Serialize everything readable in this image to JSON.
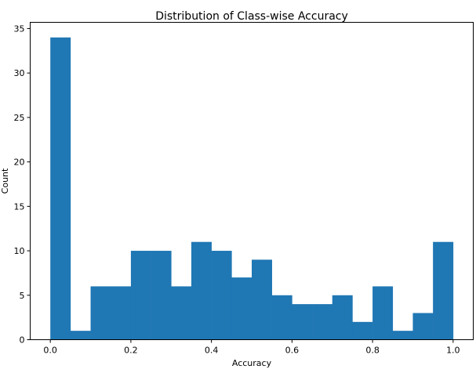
{
  "chart_data": {
    "type": "bar",
    "title": "Distribution of Class-wise Accuracy",
    "xlabel": "Accuracy",
    "ylabel": "Count",
    "bin_edges": [
      0.0,
      0.05,
      0.1,
      0.15,
      0.2,
      0.25,
      0.3,
      0.35,
      0.4,
      0.45,
      0.5,
      0.55,
      0.6,
      0.65,
      0.7,
      0.75,
      0.8,
      0.85,
      0.9,
      0.95,
      1.0
    ],
    "values": [
      34,
      1,
      6,
      6,
      10,
      10,
      6,
      11,
      10,
      7,
      9,
      5,
      4,
      4,
      5,
      2,
      6,
      1,
      3,
      11
    ],
    "xlim": [
      -0.05,
      1.05
    ],
    "ylim": [
      0,
      35.7
    ],
    "xticks": [
      "0.0",
      "0.2",
      "0.4",
      "0.6",
      "0.8",
      "1.0"
    ],
    "xtick_values": [
      0.0,
      0.2,
      0.4,
      0.6,
      0.8,
      1.0
    ],
    "yticks": [
      "0",
      "5",
      "10",
      "15",
      "20",
      "25",
      "30",
      "35"
    ],
    "ytick_values": [
      0,
      5,
      10,
      15,
      20,
      25,
      30,
      35
    ],
    "bar_color": "#1f77b4",
    "grid": false,
    "legend": "none"
  }
}
